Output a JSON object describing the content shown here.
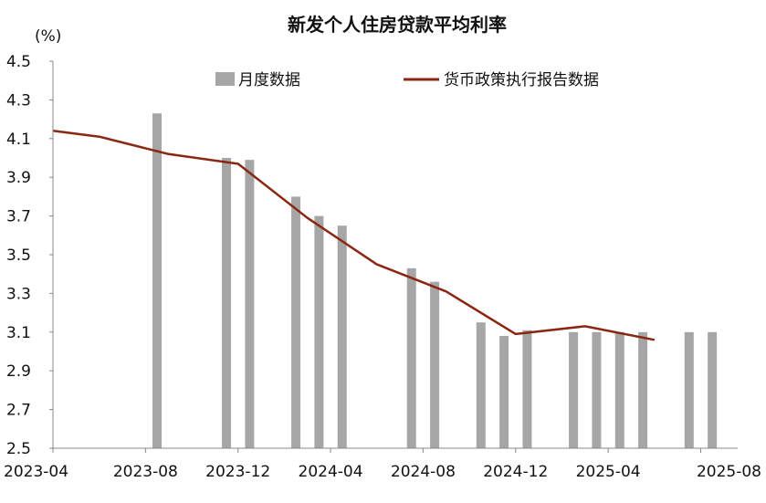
{
  "chart_data": {
    "type": "bar",
    "title": "新发个人住房贷款平均利率",
    "ylabel": "(%)",
    "xlabel": "",
    "ylim": [
      2.5,
      4.5
    ],
    "yticks": [
      "4.5",
      "4.3",
      "4.1",
      "3.9",
      "3.7",
      "3.5",
      "3.3",
      "3.1",
      "2.9",
      "2.7",
      "2.5"
    ],
    "xticks": [
      "2023-04",
      "2023-08",
      "2023-12",
      "2024-04",
      "2024-08",
      "2024-12",
      "2025-04",
      "2025-08"
    ],
    "grid": false,
    "legend_position": "top-center",
    "colors": {
      "bar": "#a6a6a6",
      "line": "#8b2612",
      "axis": "#888888"
    },
    "series": [
      {
        "name": "月度数据",
        "type": "bar",
        "points": [
          {
            "x": "2023-08",
            "y": 4.23
          },
          {
            "x": "2023-11",
            "y": 4.0
          },
          {
            "x": "2023-12",
            "y": 3.99
          },
          {
            "x": "2024-02",
            "y": 3.8
          },
          {
            "x": "2024-03",
            "y": 3.7
          },
          {
            "x": "2024-04",
            "y": 3.65
          },
          {
            "x": "2024-07",
            "y": 3.43
          },
          {
            "x": "2024-08",
            "y": 3.36
          },
          {
            "x": "2024-10",
            "y": 3.15
          },
          {
            "x": "2024-11",
            "y": 3.08
          },
          {
            "x": "2024-12",
            "y": 3.11
          },
          {
            "x": "2025-02",
            "y": 3.1
          },
          {
            "x": "2025-03",
            "y": 3.1
          },
          {
            "x": "2025-04",
            "y": 3.1
          },
          {
            "x": "2025-05",
            "y": 3.1
          },
          {
            "x": "2025-07",
            "y": 3.1
          },
          {
            "x": "2025-08",
            "y": 3.1
          }
        ]
      },
      {
        "name": "货币政策执行报告数据",
        "type": "line",
        "points": [
          {
            "x": "2023-04",
            "y": 4.14
          },
          {
            "x": "2023-06",
            "y": 4.11
          },
          {
            "x": "2023-09",
            "y": 4.02
          },
          {
            "x": "2023-12",
            "y": 3.97
          },
          {
            "x": "2024-03",
            "y": 3.69
          },
          {
            "x": "2024-06",
            "y": 3.45
          },
          {
            "x": "2024-09",
            "y": 3.31
          },
          {
            "x": "2024-12",
            "y": 3.09
          },
          {
            "x": "2025-03",
            "y": 3.13
          },
          {
            "x": "2025-06",
            "y": 3.06
          }
        ]
      }
    ]
  }
}
